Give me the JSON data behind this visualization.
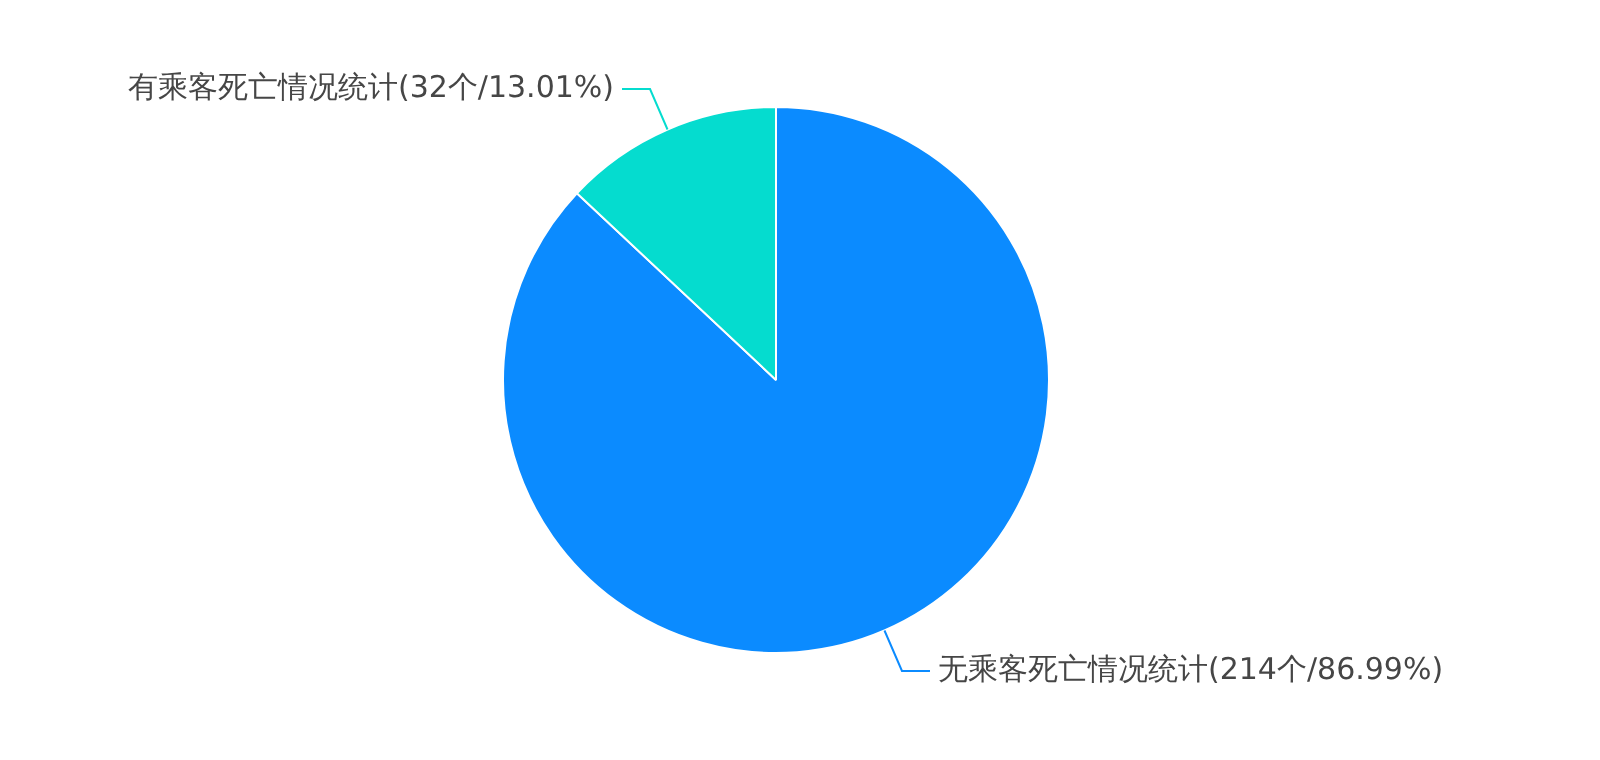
{
  "chart_data": {
    "type": "pie",
    "categories": [
      "无乘客死亡情况统计(214个/86.99%)",
      "有乘客死亡情况统计(32个/13.01%)"
    ],
    "values": [
      214,
      32
    ],
    "colors": [
      "#0b8bff",
      "#05dccf"
    ],
    "legend": false
  }
}
